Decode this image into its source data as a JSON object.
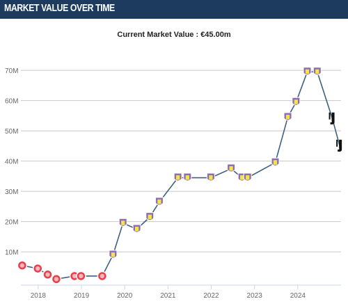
{
  "header": {
    "title": "MARKET VALUE OVER TIME"
  },
  "chart_data": {
    "type": "line",
    "title": "",
    "subtitle": "Current Market Value : €45.00m",
    "xlabel": "",
    "ylabel": "",
    "x_ticks": [
      "2018",
      "2019",
      "2020",
      "2021",
      "2022",
      "2023",
      "2024"
    ],
    "y_ticks": [
      "10M",
      "20M",
      "30M",
      "40M",
      "50M",
      "60M",
      "70M"
    ],
    "xlim": [
      2017.6,
      2025.0
    ],
    "ylim": [
      -1,
      76
    ],
    "grid": true,
    "series": [
      {
        "name": "",
        "color": "#3d5f82",
        "points": [
          {
            "x": 2017.63,
            "y": 5.5,
            "club": "girona"
          },
          {
            "x": 2017.99,
            "y": 4.5,
            "club": "girona"
          },
          {
            "x": 2018.22,
            "y": 2.5,
            "club": "girona"
          },
          {
            "x": 2018.42,
            "y": 1.0,
            "club": "girona"
          },
          {
            "x": 2018.84,
            "y": 2.0,
            "club": "girona"
          },
          {
            "x": 2018.99,
            "y": 2.0,
            "club": "girona"
          },
          {
            "x": 2019.48,
            "y": 2.0,
            "club": "girona"
          },
          {
            "x": 2019.73,
            "y": 9.0,
            "club": "aston-villa"
          },
          {
            "x": 2019.96,
            "y": 19.5,
            "club": "aston-villa"
          },
          {
            "x": 2020.28,
            "y": 17.5,
            "club": "aston-villa"
          },
          {
            "x": 2020.58,
            "y": 21.5,
            "club": "aston-villa"
          },
          {
            "x": 2020.8,
            "y": 26.5,
            "club": "aston-villa"
          },
          {
            "x": 2021.23,
            "y": 34.5,
            "club": "aston-villa"
          },
          {
            "x": 2021.45,
            "y": 34.5,
            "club": "aston-villa"
          },
          {
            "x": 2021.99,
            "y": 34.5,
            "club": "aston-villa"
          },
          {
            "x": 2022.46,
            "y": 37.5,
            "club": "aston-villa"
          },
          {
            "x": 2022.71,
            "y": 34.5,
            "club": "aston-villa"
          },
          {
            "x": 2022.84,
            "y": 34.5,
            "club": "aston-villa"
          },
          {
            "x": 2023.48,
            "y": 39.5,
            "club": "aston-villa"
          },
          {
            "x": 2023.77,
            "y": 54.5,
            "club": "aston-villa"
          },
          {
            "x": 2023.96,
            "y": 59.5,
            "club": "aston-villa"
          },
          {
            "x": 2024.22,
            "y": 69.5,
            "club": "aston-villa"
          },
          {
            "x": 2024.45,
            "y": 69.5,
            "club": "aston-villa"
          },
          {
            "x": 2024.8,
            "y": 54.0,
            "club": "juventus"
          },
          {
            "x": 2024.97,
            "y": 45.0,
            "club": "juventus"
          }
        ]
      }
    ]
  }
}
